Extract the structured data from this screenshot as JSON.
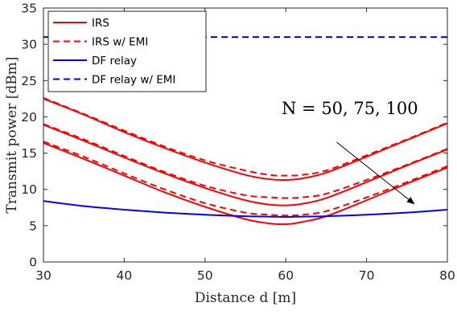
{
  "chart_data": {
    "type": "line",
    "xlabel": "Distance d [m]",
    "ylabel": "Transmit power [dBm]",
    "xlim": [
      30,
      80
    ],
    "ylim": [
      0,
      35
    ],
    "xticks": [
      30,
      40,
      50,
      60,
      70,
      80
    ],
    "yticks": [
      0,
      5,
      10,
      15,
      20,
      25,
      30,
      35
    ],
    "grid": false,
    "legend_position": "top-left",
    "x": [
      30,
      35,
      40,
      45,
      50,
      55,
      58,
      60,
      62,
      65,
      70,
      75,
      80
    ],
    "series": [
      {
        "name": "IRS",
        "group": "N=100",
        "color": "#ff0000",
        "dash": "solid",
        "values": [
          16.4,
          14.2,
          11.9,
          9.6,
          7.6,
          5.9,
          5.3,
          5.2,
          5.5,
          6.3,
          8.5,
          10.8,
          13.0
        ]
      },
      {
        "name": "IRS",
        "group": "N=75",
        "color": "#ff0000",
        "dash": "solid",
        "values": [
          18.9,
          16.7,
          14.4,
          12.2,
          10.2,
          8.5,
          7.9,
          7.8,
          8.0,
          8.8,
          11.0,
          13.3,
          15.5
        ]
      },
      {
        "name": "IRS",
        "group": "N=50",
        "color": "#ff0000",
        "dash": "solid",
        "values": [
          22.5,
          20.3,
          17.9,
          15.7,
          13.7,
          12.0,
          11.4,
          11.3,
          11.5,
          12.3,
          14.5,
          16.8,
          19.1
        ]
      },
      {
        "name": "IRS w/ EMI",
        "group": "N=100",
        "color": "#ff0000",
        "dash": "dashed",
        "values": [
          16.6,
          14.5,
          12.2,
          10.0,
          8.1,
          6.8,
          6.5,
          6.4,
          6.5,
          7.0,
          8.9,
          11.0,
          13.2
        ]
      },
      {
        "name": "IRS w/ EMI",
        "group": "N=75",
        "color": "#ff0000",
        "dash": "dashed",
        "values": [
          19.0,
          16.9,
          14.6,
          12.4,
          10.5,
          9.2,
          8.9,
          8.8,
          8.9,
          9.4,
          11.3,
          13.4,
          15.6
        ]
      },
      {
        "name": "IRS w/ EMI",
        "group": "N=50",
        "color": "#ff0000",
        "dash": "dashed",
        "values": [
          22.6,
          20.4,
          18.1,
          15.9,
          14.0,
          12.6,
          12.0,
          11.9,
          12.0,
          12.6,
          14.7,
          16.9,
          19.2
        ]
      },
      {
        "name": "DF relay",
        "color": "#0000ff",
        "dash": "solid",
        "values": [
          8.4,
          7.7,
          7.2,
          6.8,
          6.5,
          6.3,
          6.25,
          6.2,
          6.25,
          6.3,
          6.5,
          6.8,
          7.2
        ]
      },
      {
        "name": "DF relay w/ EMI",
        "color": "#0000ff",
        "dash": "dashed",
        "values": [
          31.0,
          31.0,
          31.0,
          31.0,
          31.0,
          31.0,
          31.0,
          31.0,
          31.0,
          31.0,
          31.0,
          31.0,
          31.0
        ]
      }
    ],
    "legend": [
      {
        "label": "IRS",
        "color": "#ff0000",
        "dash": "solid"
      },
      {
        "label": "IRS w/ EMI",
        "color": "#ff0000",
        "dash": "dashed"
      },
      {
        "label": "DF relay",
        "color": "#0000ff",
        "dash": "solid"
      },
      {
        "label": "DF relay w/ EMI",
        "color": "#0000ff",
        "dash": "dashed"
      }
    ],
    "annotation": {
      "text": "N = 50, 75, 100",
      "arrow_from": [
        66.3,
        16.5
      ],
      "arrow_to": [
        75.9,
        8.0
      ]
    }
  }
}
